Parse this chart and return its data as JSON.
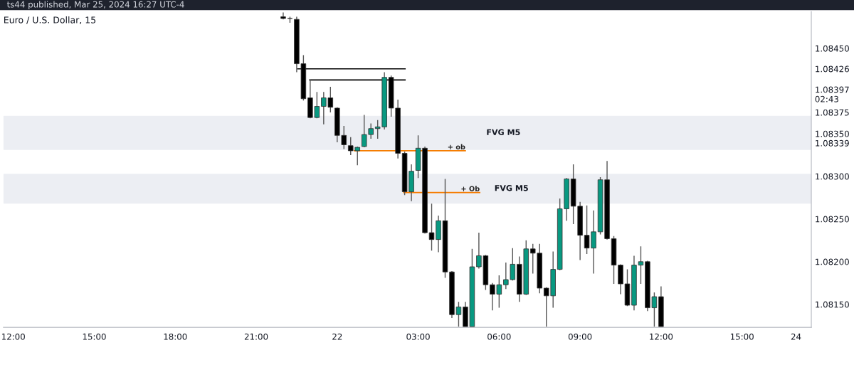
{
  "chart_data": {
    "type": "candlestick",
    "title": "Euro / U.S. Dollar, 15",
    "annotations": [
      "ts44 published, Mar 25, 2024 16:27 UTC-4"
    ],
    "x": [
      "2024-03-21T22:00",
      "2024-03-21T22:15",
      "2024-03-21T22:30",
      "2024-03-21T22:45",
      "2024-03-21T23:00",
      "2024-03-21T23:15",
      "2024-03-21T23:30",
      "2024-03-21T23:45",
      "2024-03-22T00:00",
      "2024-03-22T00:15",
      "2024-03-22T00:30",
      "2024-03-22T00:45",
      "2024-03-22T01:00",
      "2024-03-22T01:15",
      "2024-03-22T01:30",
      "2024-03-22T01:45",
      "2024-03-22T02:00",
      "2024-03-22T02:15",
      "2024-03-22T02:30",
      "2024-03-22T02:45",
      "2024-03-22T03:00",
      "2024-03-22T03:15",
      "2024-03-22T03:30",
      "2024-03-22T03:45",
      "2024-03-22T04:00",
      "2024-03-22T04:15",
      "2024-03-22T04:30",
      "2024-03-22T04:45",
      "2024-03-22T05:00",
      "2024-03-22T05:15",
      "2024-03-22T05:30",
      "2024-03-22T05:45",
      "2024-03-22T06:00",
      "2024-03-22T06:15",
      "2024-03-22T06:30",
      "2024-03-22T06:45",
      "2024-03-22T07:00",
      "2024-03-22T07:15",
      "2024-03-22T07:30",
      "2024-03-22T07:45",
      "2024-03-22T08:00",
      "2024-03-22T08:15",
      "2024-03-22T08:30",
      "2024-03-22T08:45",
      "2024-03-22T09:00",
      "2024-03-22T09:15",
      "2024-03-22T09:30",
      "2024-03-22T09:45",
      "2024-03-22T10:00",
      "2024-03-22T10:15",
      "2024-03-22T10:30",
      "2024-03-22T10:45",
      "2024-03-22T11:00",
      "2024-03-22T11:15",
      "2024-03-22T11:30",
      "2024-03-22T11:45",
      "2024-03-22T12:00"
    ],
    "ohlc": [
      [
        1.08487,
        1.08492,
        1.08484,
        1.08485
      ],
      [
        1.08485,
        1.08487,
        1.0848,
        1.08485
      ],
      [
        1.08484,
        1.08487,
        1.08422,
        1.08432
      ],
      [
        1.08432,
        1.08442,
        1.08389,
        1.08391
      ],
      [
        1.08392,
        1.08413,
        1.08368,
        1.08369
      ],
      [
        1.08369,
        1.08399,
        1.08368,
        1.08382
      ],
      [
        1.08382,
        1.08399,
        1.08361,
        1.08392
      ],
      [
        1.08392,
        1.08405,
        1.08375,
        1.08381
      ],
      [
        1.0838,
        1.08381,
        1.0834,
        1.08348
      ],
      [
        1.08348,
        1.08359,
        1.08332,
        1.08337
      ],
      [
        1.08336,
        1.08346,
        1.08325,
        1.0833
      ],
      [
        1.0833,
        1.08335,
        1.08313,
        1.08334
      ],
      [
        1.08335,
        1.08372,
        1.08334,
        1.08349
      ],
      [
        1.08349,
        1.08362,
        1.08344,
        1.08356
      ],
      [
        1.08356,
        1.08366,
        1.08344,
        1.08358
      ],
      [
        1.08358,
        1.08422,
        1.08355,
        1.08416
      ],
      [
        1.08416,
        1.08418,
        1.0837,
        1.0838
      ],
      [
        1.0838,
        1.0839,
        1.08321,
        1.08327
      ],
      [
        1.08327,
        1.08329,
        1.08278,
        1.08282
      ],
      [
        1.08282,
        1.08314,
        1.08271,
        1.08306
      ],
      [
        1.08307,
        1.08348,
        1.08298,
        1.08333
      ],
      [
        1.08333,
        1.08335,
        1.08233,
        1.08234
      ],
      [
        1.08234,
        1.08268,
        1.08213,
        1.08226
      ],
      [
        1.08226,
        1.08254,
        1.08211,
        1.08248
      ],
      [
        1.08248,
        1.08297,
        1.08181,
        1.08188
      ],
      [
        1.08188,
        1.08189,
        1.08134,
        1.08138
      ],
      [
        1.08138,
        1.08153,
        1.08124,
        1.08147
      ],
      [
        1.08147,
        1.08153,
        1.08124,
        1.08124
      ],
      [
        1.08124,
        1.08215,
        1.08124,
        1.08194
      ],
      [
        1.08194,
        1.08234,
        1.08192,
        1.08207
      ],
      [
        1.08207,
        1.08208,
        1.08167,
        1.08173
      ],
      [
        1.08173,
        1.08175,
        1.08143,
        1.08162
      ],
      [
        1.08162,
        1.08184,
        1.08146,
        1.08173
      ],
      [
        1.08173,
        1.08199,
        1.08168,
        1.08179
      ],
      [
        1.08179,
        1.08216,
        1.08178,
        1.08197
      ],
      [
        1.08197,
        1.08206,
        1.08153,
        1.08162
      ],
      [
        1.08162,
        1.08225,
        1.08161,
        1.08215
      ],
      [
        1.08215,
        1.08221,
        1.08186,
        1.0821
      ],
      [
        1.0821,
        1.08221,
        1.08163,
        1.08169
      ],
      [
        1.08169,
        1.0817,
        1.08124,
        1.0816
      ],
      [
        1.0816,
        1.08212,
        1.08146,
        1.08191
      ],
      [
        1.08191,
        1.08274,
        1.0819,
        1.08262
      ],
      [
        1.08262,
        1.08298,
        1.08248,
        1.08297
      ],
      [
        1.08297,
        1.08314,
        1.08244,
        1.08265
      ],
      [
        1.08265,
        1.0827,
        1.08202,
        1.08231
      ],
      [
        1.08231,
        1.08266,
        1.08209,
        1.08216
      ],
      [
        1.08216,
        1.0826,
        1.08186,
        1.08235
      ],
      [
        1.08235,
        1.08299,
        1.08232,
        1.08296
      ],
      [
        1.08296,
        1.08318,
        1.08226,
        1.08227
      ],
      [
        1.08227,
        1.0823,
        1.08174,
        1.08196
      ],
      [
        1.08196,
        1.08197,
        1.08162,
        1.08174
      ],
      [
        1.08174,
        1.08191,
        1.08148,
        1.08149
      ],
      [
        1.08149,
        1.08207,
        1.08143,
        1.08196
      ],
      [
        1.08196,
        1.08218,
        1.08174,
        1.082
      ],
      [
        1.082,
        1.08201,
        1.08142,
        1.08146
      ],
      [
        1.08146,
        1.08164,
        1.08124,
        1.08159
      ],
      [
        1.08159,
        1.08171,
        1.08124,
        1.08124
      ]
    ],
    "colors": [
      "#000000",
      "#000000",
      "#000000",
      "#000000",
      "#000000",
      "#089981",
      "#089981",
      "#000000",
      "#000000",
      "#000000",
      "#000000",
      "#089981",
      "#089981",
      "#089981",
      "#089981",
      "#089981",
      "#000000",
      "#000000",
      "#000000",
      "#089981",
      "#089981",
      "#000000",
      "#000000",
      "#089981",
      "#000000",
      "#000000",
      "#089981",
      "#000000",
      "#089981",
      "#089981",
      "#000000",
      "#000000",
      "#089981",
      "#089981",
      "#089981",
      "#000000",
      "#089981",
      "#000000",
      "#000000",
      "#000000",
      "#089981",
      "#089981",
      "#089981",
      "#000000",
      "#000000",
      "#000000",
      "#089981",
      "#089981",
      "#000000",
      "#000000",
      "#000000",
      "#000000",
      "#089981",
      "#089981",
      "#000000",
      "#089981",
      "#000000"
    ],
    "series": [
      {
        "type": "line",
        "color": "#000000",
        "x": [
          "2024-03-21T22:32",
          "2024-03-22T02:31"
        ],
        "values": [
          1.08426,
          1.08426
        ]
      },
      {
        "type": "line",
        "color": "#000000",
        "x": [
          "2024-03-21T22:59",
          "2024-03-22T02:31"
        ],
        "values": [
          1.08413,
          1.08413
        ]
      },
      {
        "type": "line",
        "name": "+ ob",
        "color": "#f57c00",
        "x": [
          "2024-03-22T00:38",
          "2024-03-22T04:45"
        ],
        "values": [
          1.0833,
          1.0833
        ]
      },
      {
        "type": "line",
        "name": "+ Ob",
        "color": "#f57c00",
        "x": [
          "2024-03-22T02:28",
          "2024-03-22T05:17"
        ],
        "values": [
          1.08281,
          1.08281
        ]
      }
    ],
    "bands": [
      {
        "axis": "y",
        "from": 1.08331,
        "to": 1.08371,
        "label": "FVG M5",
        "color": "#e0e3eb"
      },
      {
        "axis": "y",
        "from": 1.08268,
        "to": 1.08303,
        "label": "FVG M5",
        "color": "#e0e3eb"
      }
    ],
    "xlim": [
      "2024-03-21T11:38",
      "2024-03-22T17:34"
    ],
    "ylim": [
      1.08123,
      1.08493
    ],
    "xticks": [
      {
        "value": "2024-03-21T12:00",
        "label": "12:00"
      },
      {
        "value": "2024-03-21T15:00",
        "label": "15:00"
      },
      {
        "value": "2024-03-21T18:00",
        "label": "18:00"
      },
      {
        "value": "2024-03-21T21:00",
        "label": "21:00"
      },
      {
        "value": "2024-03-22",
        "label": "22"
      },
      {
        "value": "2024-03-22T03:00",
        "label": "03:00"
      },
      {
        "value": "2024-03-22T06:00",
        "label": "06:00"
      },
      {
        "value": "2024-03-22T09:00",
        "label": "09:00"
      },
      {
        "value": "2024-03-22T12:00",
        "label": "12:00"
      },
      {
        "value": "2024-03-22T15:00",
        "label": "15:00"
      },
      {
        "value": "2024-03-22T17:00",
        "label": "24"
      }
    ],
    "yticks": [
      {
        "value": 1.0845,
        "label": "1.08450"
      },
      {
        "value": 1.08426,
        "label": "1.08426"
      },
      {
        "value": 1.08397,
        "label": "1.08397\n02:43"
      },
      {
        "value": 1.08375,
        "label": "1.08375"
      },
      {
        "value": 1.0835,
        "label": "1.08350"
      },
      {
        "value": 1.08339,
        "label": "1.08339"
      },
      {
        "value": 1.083,
        "label": "1.08300"
      },
      {
        "value": 1.0825,
        "label": "1.08250"
      },
      {
        "value": 1.082,
        "label": "1.08200"
      },
      {
        "value": 1.0815,
        "label": "1.08150"
      }
    ]
  }
}
